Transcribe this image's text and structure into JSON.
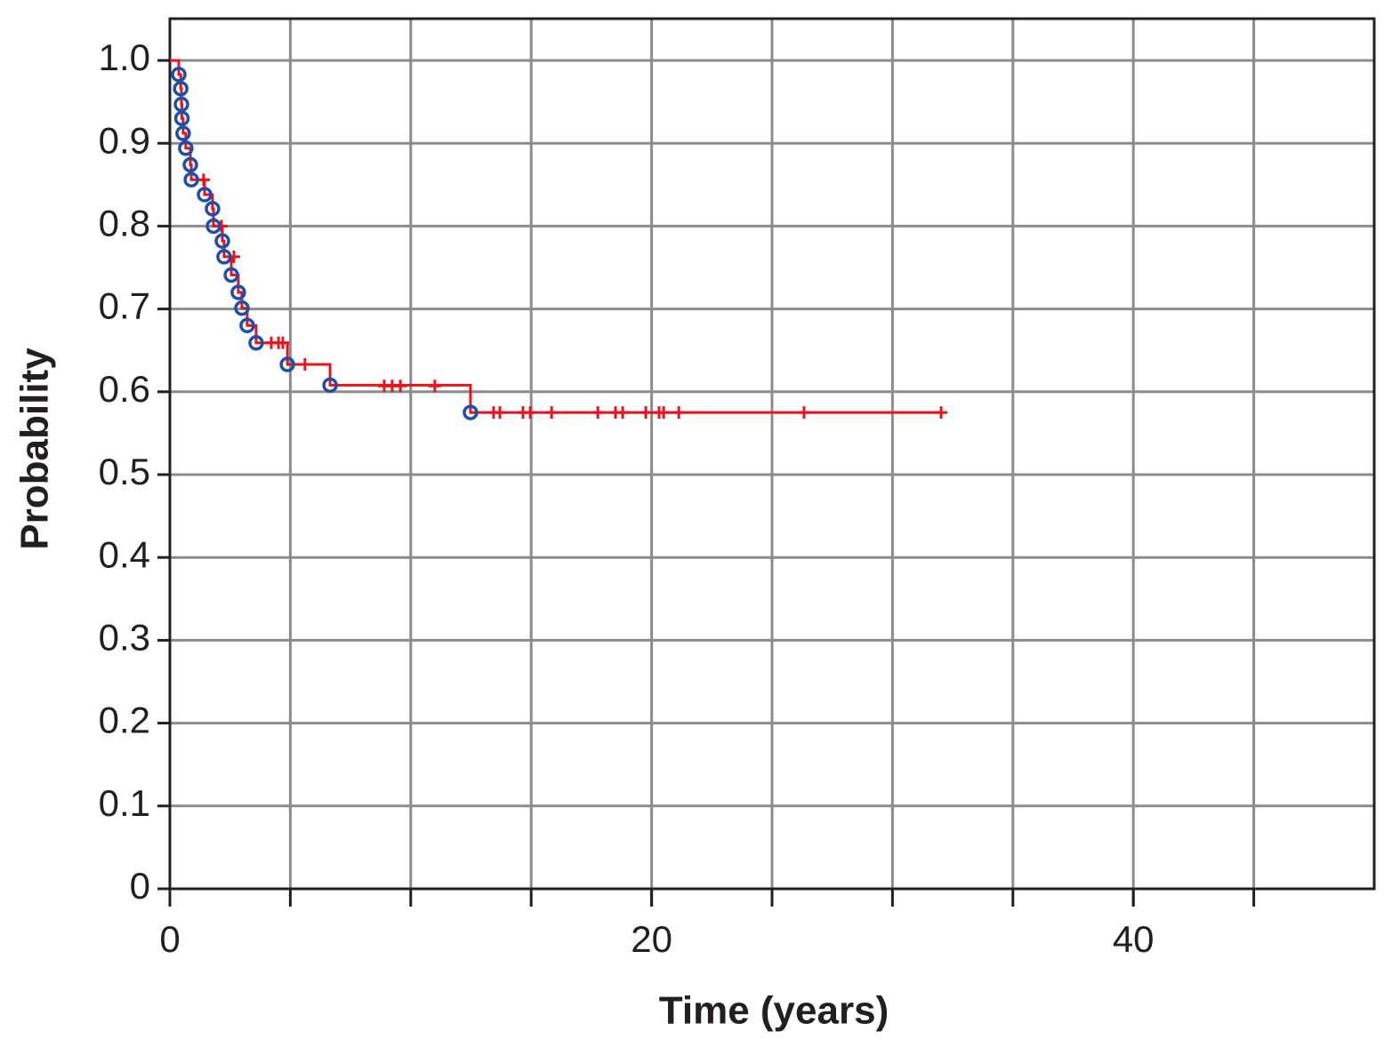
{
  "chart_data": {
    "type": "km",
    "xlabel": "Time (years)",
    "ylabel": "Probability",
    "xlim": [
      0,
      50
    ],
    "ylim": [
      0,
      1
    ],
    "xticks": [
      0,
      20,
      40
    ],
    "xgrid": [
      5,
      10,
      15,
      20,
      25,
      30,
      35,
      40,
      45
    ],
    "yticks": [
      0,
      0.1,
      0.2,
      0.3,
      0.4,
      0.5,
      0.6,
      0.7,
      0.8,
      0.9,
      {
        "value": 1,
        "label": "1.0"
      }
    ],
    "grid": true,
    "curve": {
      "color": "#e8141c",
      "x": [
        0,
        0.37,
        0.45,
        0.48,
        0.5,
        0.55,
        0.66,
        0.85,
        0.89,
        1.44,
        1.77,
        1.81,
        2.18,
        2.25,
        2.55,
        2.84,
        2.99,
        3.21,
        3.58,
        4.88,
        6.65,
        12.48,
        32.02
      ],
      "y": [
        1,
        0.983,
        0.966,
        0.947,
        0.93,
        0.912,
        0.894,
        0.874,
        0.856,
        0.838,
        0.821,
        0.8,
        0.782,
        0.763,
        0.741,
        0.72,
        0.701,
        0.68,
        0.659,
        0.633,
        0.608,
        0.575,
        0.575
      ]
    },
    "events": {
      "color": "#1f4fa8",
      "x": [
        0.37,
        0.45,
        0.48,
        0.5,
        0.55,
        0.66,
        0.85,
        0.89,
        1.44,
        1.77,
        1.81,
        2.18,
        2.25,
        2.55,
        2.84,
        2.99,
        3.21,
        3.58,
        4.88,
        6.65,
        12.48
      ],
      "y": [
        0.983,
        0.966,
        0.947,
        0.93,
        0.912,
        0.894,
        0.874,
        0.856,
        0.838,
        0.821,
        0.8,
        0.782,
        0.763,
        0.741,
        0.72,
        0.701,
        0.68,
        0.659,
        0.633,
        0.608,
        0.575
      ]
    },
    "censored": {
      "color": "#e8141c",
      "x": [
        1.4,
        2.14,
        2.66,
        4.21,
        4.51,
        4.69,
        5.61,
        8.9,
        9.23,
        9.57,
        11.0,
        13.44,
        13.7,
        14.66,
        14.96,
        15.85,
        17.77,
        18.5,
        18.8,
        19.76,
        20.31,
        20.5,
        21.13,
        26.33,
        32.02
      ],
      "y": [
        0.856,
        0.8,
        0.763,
        0.659,
        0.659,
        0.659,
        0.633,
        0.607,
        0.607,
        0.607,
        0.607,
        0.575,
        0.575,
        0.575,
        0.575,
        0.575,
        0.575,
        0.575,
        0.575,
        0.575,
        0.575,
        0.575,
        0.575,
        0.575,
        0.575
      ]
    }
  }
}
